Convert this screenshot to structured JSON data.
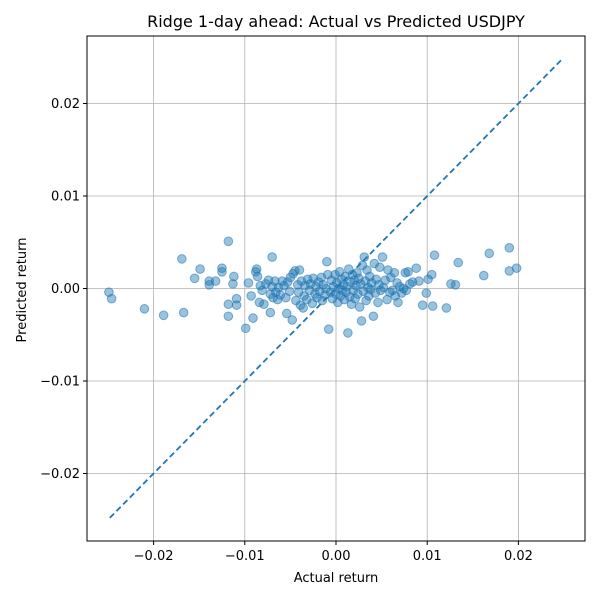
{
  "chart_data": {
    "type": "scatter",
    "title": "Ridge 1-day ahead: Actual vs Predicted USDJPY",
    "xlabel": "Actual return",
    "ylabel": "Predicted return",
    "xlim": [
      -0.0273,
      0.0273
    ],
    "ylim": [
      -0.0273,
      0.0273
    ],
    "xticks": [
      -0.02,
      -0.01,
      0.0,
      0.01,
      0.02
    ],
    "yticks": [
      -0.02,
      -0.01,
      0.0,
      0.01,
      0.02
    ],
    "xtick_labels": [
      "−0.02",
      "−0.01",
      "0.00",
      "0.01",
      "0.02"
    ],
    "ytick_labels": [
      "−0.02",
      "−0.01",
      "0.00",
      "0.01",
      "0.02"
    ],
    "grid": true,
    "reference_line": {
      "style": "dashed",
      "color": "#1f77b4",
      "x": [
        -0.0248,
        0.0248
      ],
      "y": [
        -0.0248,
        0.0248
      ]
    },
    "colors": {
      "points": "#1f77b4",
      "grid": "#b0b0b0",
      "axes": "#000000"
    },
    "points": [
      {
        "x": -0.0249,
        "y": -0.0004
      },
      {
        "x": -0.0246,
        "y": -0.0011
      },
      {
        "x": -0.021,
        "y": -0.0022
      },
      {
        "x": -0.0189,
        "y": -0.0029
      },
      {
        "x": -0.0169,
        "y": 0.0032
      },
      {
        "x": -0.0167,
        "y": -0.0026
      },
      {
        "x": -0.0155,
        "y": 0.0011
      },
      {
        "x": -0.0149,
        "y": 0.0021
      },
      {
        "x": -0.0139,
        "y": 0.0008
      },
      {
        "x": -0.0139,
        "y": 0.0004
      },
      {
        "x": -0.0132,
        "y": 0.0008
      },
      {
        "x": -0.0125,
        "y": 0.0018
      },
      {
        "x": -0.0125,
        "y": 0.0022
      },
      {
        "x": -0.0118,
        "y": 0.0051
      },
      {
        "x": -0.0118,
        "y": -0.0017
      },
      {
        "x": -0.0118,
        "y": -0.003
      },
      {
        "x": -0.0113,
        "y": 0.0005
      },
      {
        "x": -0.0112,
        "y": 0.0013
      },
      {
        "x": -0.0109,
        "y": -0.0011
      },
      {
        "x": -0.0109,
        "y": -0.0018
      },
      {
        "x": -0.0099,
        "y": -0.0043
      },
      {
        "x": -0.0096,
        "y": 0.0006
      },
      {
        "x": -0.0093,
        "y": -0.0008
      },
      {
        "x": -0.0091,
        "y": -0.0032
      },
      {
        "x": -0.0088,
        "y": 0.0018
      },
      {
        "x": -0.0087,
        "y": 0.0021
      },
      {
        "x": -0.0086,
        "y": 0.0013
      },
      {
        "x": -0.0084,
        "y": -0.0015
      },
      {
        "x": -0.0083,
        "y": 0.0003
      },
      {
        "x": -0.0081,
        "y": -0.0002
      },
      {
        "x": -0.0079,
        "y": -0.0017
      },
      {
        "x": -0.0077,
        "y": 0.0005
      },
      {
        "x": -0.0074,
        "y": 0.0009
      },
      {
        "x": -0.0072,
        "y": -0.0006
      },
      {
        "x": -0.0072,
        "y": -0.0026
      },
      {
        "x": -0.007,
        "y": 0.0034
      },
      {
        "x": -0.007,
        "y": 0.0002
      },
      {
        "x": -0.0069,
        "y": -0.001
      },
      {
        "x": -0.0067,
        "y": 0.0008
      },
      {
        "x": -0.0066,
        "y": -0.0004
      },
      {
        "x": -0.0064,
        "y": -0.0012
      },
      {
        "x": -0.0063,
        "y": 0.0001
      },
      {
        "x": -0.0061,
        "y": -0.0007
      },
      {
        "x": -0.0059,
        "y": 0.0008
      },
      {
        "x": -0.0057,
        "y": 0.0003
      },
      {
        "x": -0.0055,
        "y": -0.001
      },
      {
        "x": -0.0054,
        "y": -0.0027
      },
      {
        "x": -0.0053,
        "y": 0.0007
      },
      {
        "x": -0.0051,
        "y": -0.0003
      },
      {
        "x": -0.005,
        "y": 0.0012
      },
      {
        "x": -0.0048,
        "y": -0.0034
      },
      {
        "x": -0.0047,
        "y": 0.0016
      },
      {
        "x": -0.0045,
        "y": 0.0019
      },
      {
        "x": -0.0044,
        "y": -0.0013
      },
      {
        "x": -0.0042,
        "y": 0.0004
      },
      {
        "x": -0.0041,
        "y": -0.0004
      },
      {
        "x": -0.004,
        "y": 0.002
      },
      {
        "x": -0.0039,
        "y": -0.0018
      },
      {
        "x": -0.0038,
        "y": 0.0008
      },
      {
        "x": -0.0036,
        "y": -0.0021
      },
      {
        "x": -0.0035,
        "y": -0.0008
      },
      {
        "x": -0.0034,
        "y": 0.0003
      },
      {
        "x": -0.0032,
        "y": -0.0012
      },
      {
        "x": -0.0031,
        "y": 0.001
      },
      {
        "x": -0.0029,
        "y": -0.0002
      },
      {
        "x": -0.0028,
        "y": 0.0005
      },
      {
        "x": -0.0026,
        "y": -0.0016
      },
      {
        "x": -0.0025,
        "y": 0.0011
      },
      {
        "x": -0.0023,
        "y": -0.0006
      },
      {
        "x": -0.0022,
        "y": 0.0002
      },
      {
        "x": -0.0021,
        "y": -0.001
      },
      {
        "x": -0.0019,
        "y": 0.0007
      },
      {
        "x": -0.0018,
        "y": -0.0003
      },
      {
        "x": -0.0016,
        "y": 0.0012
      },
      {
        "x": -0.0015,
        "y": -0.0013
      },
      {
        "x": -0.0014,
        "y": 0.0004
      },
      {
        "x": -0.0012,
        "y": -0.0007
      },
      {
        "x": -0.0011,
        "y": 0.0
      },
      {
        "x": -0.001,
        "y": 0.0029
      },
      {
        "x": -0.0009,
        "y": 0.0015
      },
      {
        "x": -0.0008,
        "y": -0.0044
      },
      {
        "x": -0.0006,
        "y": -0.0004
      },
      {
        "x": -0.0005,
        "y": 0.0009
      },
      {
        "x": -0.0004,
        "y": -0.0011
      },
      {
        "x": -0.0003,
        "y": 0.0002
      },
      {
        "x": -0.0001,
        "y": 0.0015
      },
      {
        "x": 0.0,
        "y": -0.0006
      },
      {
        "x": 0.0001,
        "y": 0.0006
      },
      {
        "x": 0.0002,
        "y": -0.0015
      },
      {
        "x": 0.0003,
        "y": 0.0
      },
      {
        "x": 0.0004,
        "y": 0.0018
      },
      {
        "x": 0.0005,
        "y": -0.0008
      },
      {
        "x": 0.0006,
        "y": 0.001
      },
      {
        "x": 0.0007,
        "y": -0.0002
      },
      {
        "x": 0.0008,
        "y": 0.0004
      },
      {
        "x": 0.0009,
        "y": -0.0012
      },
      {
        "x": 0.001,
        "y": 0.0013
      },
      {
        "x": 0.0011,
        "y": -0.0004
      },
      {
        "x": 0.0012,
        "y": 0.0002
      },
      {
        "x": 0.0013,
        "y": -0.0048
      },
      {
        "x": 0.0014,
        "y": 0.0021
      },
      {
        "x": 0.0015,
        "y": -0.0009
      },
      {
        "x": 0.0016,
        "y": 0.0007
      },
      {
        "x": 0.0017,
        "y": -0.0017
      },
      {
        "x": 0.0018,
        "y": 0.0015
      },
      {
        "x": 0.0019,
        "y": -0.0002
      },
      {
        "x": 0.002,
        "y": 0.0009
      },
      {
        "x": 0.0021,
        "y": -0.0011
      },
      {
        "x": 0.0022,
        "y": 0.0003
      },
      {
        "x": 0.0023,
        "y": 0.0017
      },
      {
        "x": 0.0024,
        "y": -0.0006
      },
      {
        "x": 0.0025,
        "y": 0.0011
      },
      {
        "x": 0.0026,
        "y": -0.002
      },
      {
        "x": 0.0027,
        "y": 0.0005
      },
      {
        "x": 0.0028,
        "y": -0.0035
      },
      {
        "x": 0.0029,
        "y": 0.0025
      },
      {
        "x": 0.003,
        "y": -0.0003
      },
      {
        "x": 0.0031,
        "y": 0.0034
      },
      {
        "x": 0.0032,
        "y": 0.0008
      },
      {
        "x": 0.0033,
        "y": -0.0013
      },
      {
        "x": 0.0034,
        "y": 0.002
      },
      {
        "x": 0.0035,
        "y": 0.0001
      },
      {
        "x": 0.0036,
        "y": -0.0008
      },
      {
        "x": 0.0037,
        "y": 0.0013
      },
      {
        "x": 0.0038,
        "y": -0.0001
      },
      {
        "x": 0.0039,
        "y": 0.0006
      },
      {
        "x": 0.0041,
        "y": -0.003
      },
      {
        "x": 0.0042,
        "y": 0.0027
      },
      {
        "x": 0.0043,
        "y": -0.0005
      },
      {
        "x": 0.0044,
        "y": 0.001
      },
      {
        "x": 0.0046,
        "y": -0.0015
      },
      {
        "x": 0.0047,
        "y": 0.0004
      },
      {
        "x": 0.0048,
        "y": 0.0023
      },
      {
        "x": 0.0049,
        "y": -0.0002
      },
      {
        "x": 0.0051,
        "y": 0.0034
      },
      {
        "x": 0.0052,
        "y": 0.0001
      },
      {
        "x": 0.0054,
        "y": 0.0009
      },
      {
        "x": 0.0056,
        "y": -0.0012
      },
      {
        "x": 0.0057,
        "y": 0.002
      },
      {
        "x": 0.0059,
        "y": -0.0004
      },
      {
        "x": 0.006,
        "y": 0.0012
      },
      {
        "x": 0.0062,
        "y": -0.0002
      },
      {
        "x": 0.0064,
        "y": 0.0017
      },
      {
        "x": 0.0065,
        "y": -0.0008
      },
      {
        "x": 0.0067,
        "y": 0.0006
      },
      {
        "x": 0.0068,
        "y": -0.0015
      },
      {
        "x": 0.007,
        "y": 0.0002
      },
      {
        "x": 0.0072,
        "y": -0.0005
      },
      {
        "x": 0.0074,
        "y": 0.0
      },
      {
        "x": 0.0076,
        "y": 0.0017
      },
      {
        "x": 0.0077,
        "y": -0.0002
      },
      {
        "x": 0.0079,
        "y": 0.0018
      },
      {
        "x": 0.0081,
        "y": 0.0005
      },
      {
        "x": 0.0084,
        "y": 0.0007
      },
      {
        "x": 0.0088,
        "y": 0.0022
      },
      {
        "x": 0.0091,
        "y": 0.0008
      },
      {
        "x": 0.0095,
        "y": -0.0018
      },
      {
        "x": 0.0099,
        "y": -0.0005
      },
      {
        "x": 0.0101,
        "y": 0.001
      },
      {
        "x": 0.0105,
        "y": 0.0015
      },
      {
        "x": 0.0106,
        "y": -0.0019
      },
      {
        "x": 0.0108,
        "y": 0.0036
      },
      {
        "x": 0.0121,
        "y": -0.0021
      },
      {
        "x": 0.0126,
        "y": 0.0005
      },
      {
        "x": 0.0131,
        "y": 0.0004
      },
      {
        "x": 0.0134,
        "y": 0.0028
      },
      {
        "x": 0.0162,
        "y": 0.0014
      },
      {
        "x": 0.0168,
        "y": 0.0038
      },
      {
        "x": 0.019,
        "y": 0.0044
      },
      {
        "x": 0.019,
        "y": 0.0019
      },
      {
        "x": 0.0198,
        "y": 0.0022
      }
    ]
  }
}
